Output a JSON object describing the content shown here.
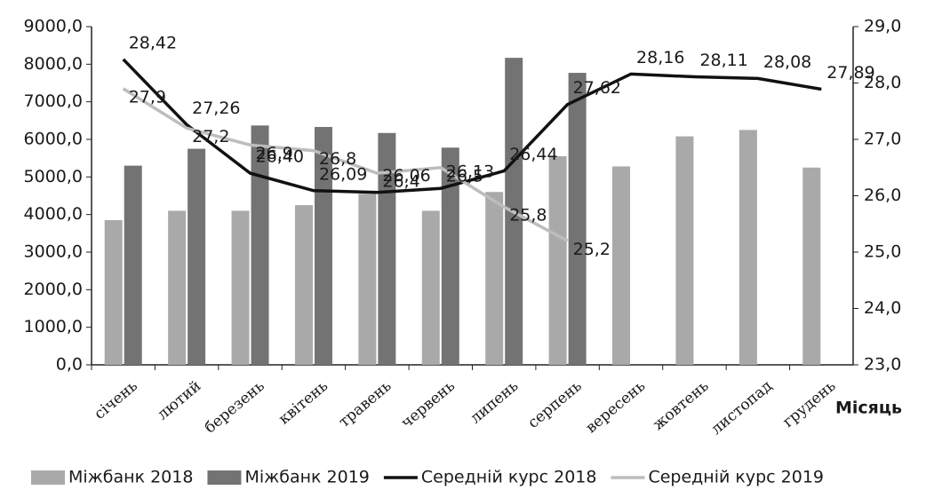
{
  "chart_data": {
    "type": "bar-line",
    "x_label": "Місяць",
    "categories": [
      "січень",
      "лютий",
      "березень",
      "квітень",
      "травень",
      "червень",
      "липень",
      "серпень",
      "вересень",
      "жовтень",
      "листопад",
      "грудень"
    ],
    "series": [
      {
        "name": "Міжбанк 2018",
        "type": "bar",
        "color": "#a9a9a9",
        "values": [
          3850,
          4100,
          4100,
          4250,
          4550,
          4100,
          4600,
          5550,
          5280,
          6080,
          6250,
          5250
        ]
      },
      {
        "name": "Міжбанк 2019",
        "type": "bar",
        "color": "#737373",
        "values": [
          5300,
          5750,
          6370,
          6330,
          6170,
          5780,
          8170,
          7770,
          null,
          null,
          null,
          null
        ]
      },
      {
        "name": "Середній курс 2018",
        "type": "line",
        "axis": "y2",
        "color": "#111111",
        "values": [
          28.42,
          27.26,
          26.4,
          26.09,
          26.06,
          26.13,
          26.44,
          27.62,
          28.16,
          28.11,
          28.08,
          27.89
        ],
        "value_labels": [
          "28,42",
          "27,26",
          "26,40",
          "26,09",
          "26,06",
          "26,13",
          "26,44",
          "27,62",
          "28,16",
          "28,11",
          "28,08",
          "27,89"
        ]
      },
      {
        "name": "Середній курс 2019",
        "type": "line",
        "axis": "y2",
        "color": "#bdbdbd",
        "values": [
          27.9,
          27.2,
          26.9,
          26.8,
          26.4,
          26.5,
          25.8,
          25.2,
          null,
          null,
          null,
          null
        ],
        "value_labels": [
          "27,9",
          "27,2",
          "26,9",
          "26,8",
          "26,4",
          "26,5",
          "25,8",
          "25,2",
          null,
          null,
          null,
          null
        ]
      }
    ],
    "ylim": [
      0,
      9000
    ],
    "yticks": [
      {
        "value": 0,
        "label": "0,0"
      },
      {
        "value": 1000,
        "label": "1000,0"
      },
      {
        "value": 2000,
        "label": "2000,0"
      },
      {
        "value": 3000,
        "label": "3000,0"
      },
      {
        "value": 4000,
        "label": "4000,0"
      },
      {
        "value": 5000,
        "label": "5000,0"
      },
      {
        "value": 6000,
        "label": "6000,0"
      },
      {
        "value": 7000,
        "label": "7000,0"
      },
      {
        "value": 8000,
        "label": "8000,0"
      },
      {
        "value": 9000,
        "label": "9000,0"
      }
    ],
    "y2lim": [
      23,
      29
    ],
    "y2ticks": [
      {
        "value": 23,
        "label": "23,0"
      },
      {
        "value": 24,
        "label": "24,0"
      },
      {
        "value": 25,
        "label": "25,0"
      },
      {
        "value": 26,
        "label": "26,0"
      },
      {
        "value": 27,
        "label": "27,0"
      },
      {
        "value": 28,
        "label": "28,0"
      },
      {
        "value": 29,
        "label": "29,0"
      }
    ]
  }
}
